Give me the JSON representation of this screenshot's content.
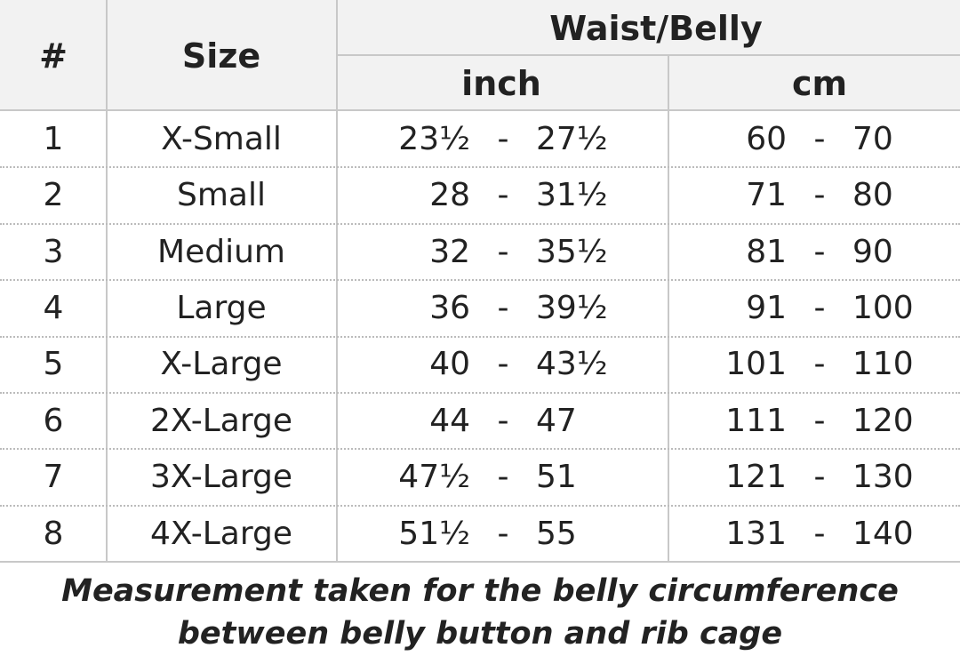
{
  "table": {
    "header": {
      "number": "#",
      "size": "Size",
      "group": "Waist/Belly",
      "units": [
        "inch",
        "cm"
      ]
    },
    "separator": "-",
    "rows": [
      [
        "1",
        "X-Small",
        "23½",
        "27½",
        "60",
        "70"
      ],
      [
        "2",
        "Small",
        "28",
        "31½",
        "71",
        "80"
      ],
      [
        "3",
        "Medium",
        "32",
        "35½",
        "81",
        "90"
      ],
      [
        "4",
        "Large",
        "36",
        "39½",
        "91",
        "100"
      ],
      [
        "5",
        "X-Large",
        "40",
        "43½",
        "101",
        "110"
      ],
      [
        "6",
        "2X-Large",
        "44",
        "47",
        "111",
        "120"
      ],
      [
        "7",
        "3X-Large",
        "47½",
        "51",
        "121",
        "130"
      ],
      [
        "8",
        "4X-Large",
        "51½",
        "55",
        "131",
        "140"
      ]
    ]
  },
  "note": [
    "Measurement taken for the belly circumference",
    "between belly button and rib cage"
  ]
}
